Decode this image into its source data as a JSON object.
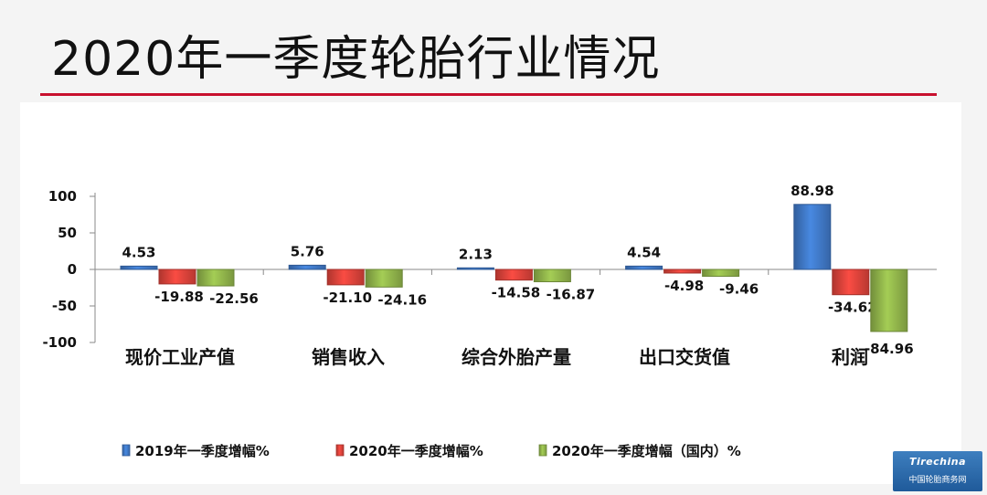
{
  "page": {
    "title": "2020年一季度轮胎行业情况",
    "logo_brand": "Tirechina",
    "logo_text": "中国轮胎商务网"
  },
  "colors": {
    "series": [
      "#3f77c4",
      "#d9423a",
      "#8fb24a"
    ],
    "accent_rule": "#c8102e"
  },
  "chart_data": {
    "type": "bar",
    "categories": [
      "现价工业产值",
      "销售收入",
      "综合外胎产量",
      "出口交货值",
      "利润"
    ],
    "series": [
      {
        "name": "2019年一季度增幅%",
        "values": [
          4.53,
          5.76,
          2.13,
          4.54,
          88.98
        ]
      },
      {
        "name": "2020年一季度增幅%",
        "values": [
          -19.88,
          -21.1,
          -14.58,
          -4.98,
          -34.62
        ]
      },
      {
        "name": "2020年一季度增幅（国内）%",
        "values": [
          -22.56,
          -24.16,
          -16.87,
          -9.46,
          -84.96
        ]
      }
    ],
    "value_labels": [
      [
        "4.53",
        "5.76",
        "2.13",
        "4.54",
        "88.98"
      ],
      [
        "-19.88",
        "-21.10",
        "-14.58",
        "-4.98",
        "-34.62"
      ],
      [
        "-22.56",
        "-24.16",
        "-16.87",
        "-9.46",
        "-84.96"
      ]
    ],
    "y_ticks": [
      100,
      50,
      0,
      -50,
      -100
    ],
    "ylim": [
      -100,
      100
    ],
    "grid": false,
    "legend_position": "bottom",
    "xlabel": "",
    "ylabel": ""
  }
}
